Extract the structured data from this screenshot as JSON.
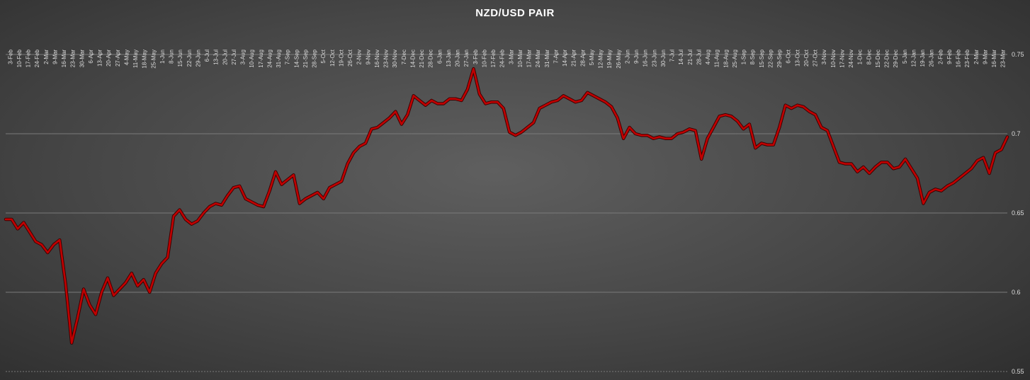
{
  "chart_data": {
    "type": "line",
    "title": "NZD/USD PAIR",
    "xlabel": "",
    "ylabel": "",
    "ylim": [
      0.55,
      0.75
    ],
    "yticks": [
      0.55,
      0.6,
      0.65,
      0.7,
      0.75
    ],
    "ytick_labels": [
      "0.55",
      "0.6",
      "0.65",
      "0.7",
      "0.75"
    ],
    "grid": "horizontal",
    "legend": "none",
    "colors": {
      "line": "#c00000",
      "background": "#4a4a4a",
      "grid": "#7a7a7a"
    },
    "x_ticks": [
      "3-Feb",
      "10-Feb",
      "17-Feb",
      "24-Feb",
      "2-Mar",
      "9-Mar",
      "16-Mar",
      "23-Mar",
      "30-Mar",
      "6-Apr",
      "13-Apr",
      "20-Apr",
      "27-Apr",
      "4-May",
      "11-May",
      "18-May",
      "25-May",
      "1-Jun",
      "8-Jun",
      "15-Jun",
      "22-Jun",
      "29-Jun",
      "6-Jul",
      "13-Jul",
      "20-Jul",
      "27-Jul",
      "3-Aug",
      "10-Aug",
      "17-Aug",
      "24-Aug",
      "31-Aug",
      "7-Sep",
      "14-Sep",
      "21-Sep",
      "28-Sep",
      "5-Oct",
      "12-Oct",
      "19-Oct",
      "26-Oct",
      "2-Nov",
      "9-Nov",
      "16-Nov",
      "23-Nov",
      "30-Nov",
      "7-Dec",
      "14-Dec",
      "21-Dec",
      "28-Dec",
      "6-Jan",
      "13-Jan",
      "20-Jan",
      "27-Jan",
      "3-Feb",
      "10-Feb",
      "17-Feb",
      "24-Feb",
      "3-Mar",
      "10-Mar",
      "17-Mar",
      "24-Mar",
      "31-Mar",
      "7-Apr",
      "14-Apr",
      "21-Apr",
      "28-Apr",
      "5-May",
      "12-May",
      "19-May",
      "26-May",
      "2-Jun",
      "9-Jun",
      "16-Jun",
      "23-Jun",
      "30-Jun",
      "7-Jul",
      "14-Jul",
      "21-Jul",
      "28-Jul",
      "4-Aug",
      "11-Aug",
      "18-Aug",
      "25-Aug",
      "1-Sep",
      "8-Sep",
      "15-Sep",
      "22-Sep",
      "29-Sep",
      "6-Oct",
      "13-Oct",
      "20-Oct",
      "27-Oct",
      "3-Nov",
      "10-Nov",
      "17-Nov",
      "24-Nov",
      "1-Dec",
      "8-Dec",
      "15-Dec",
      "22-Dec",
      "29-Dec",
      "5-Jan",
      "12-Jan",
      "19-Jan",
      "26-Jan",
      "2-Feb",
      "9-Feb",
      "16-Feb",
      "23-Feb",
      "2-Mar",
      "9-Mar",
      "16-Mar",
      "23-Mar"
    ],
    "values": [
      0.646,
      0.646,
      0.64,
      0.644,
      0.638,
      0.632,
      0.63,
      0.625,
      0.63,
      0.633,
      0.605,
      0.568,
      0.584,
      0.602,
      0.592,
      0.586,
      0.6,
      0.609,
      0.598,
      0.602,
      0.606,
      0.612,
      0.604,
      0.608,
      0.6,
      0.612,
      0.618,
      0.622,
      0.648,
      0.652,
      0.646,
      0.643,
      0.645,
      0.65,
      0.654,
      0.656,
      0.655,
      0.661,
      0.666,
      0.667,
      0.659,
      0.657,
      0.655,
      0.654,
      0.664,
      0.676,
      0.668,
      0.671,
      0.674,
      0.656,
      0.659,
      0.661,
      0.663,
      0.659,
      0.666,
      0.668,
      0.67,
      0.681,
      0.688,
      0.692,
      0.694,
      0.703,
      0.704,
      0.707,
      0.71,
      0.714,
      0.706,
      0.712,
      0.724,
      0.721,
      0.718,
      0.721,
      0.719,
      0.719,
      0.722,
      0.722,
      0.721,
      0.728,
      0.741,
      0.725,
      0.719,
      0.72,
      0.72,
      0.716,
      0.701,
      0.699,
      0.701,
      0.704,
      0.707,
      0.716,
      0.718,
      0.72,
      0.721,
      0.724,
      0.722,
      0.72,
      0.721,
      0.726,
      0.724,
      0.722,
      0.72,
      0.717,
      0.71,
      0.697,
      0.704,
      0.7,
      0.699,
      0.699,
      0.697,
      0.698,
      0.697,
      0.697,
      0.7,
      0.701,
      0.703,
      0.702,
      0.684,
      0.697,
      0.704,
      0.711,
      0.712,
      0.711,
      0.708,
      0.703,
      0.706,
      0.691,
      0.694,
      0.693,
      0.693,
      0.704,
      0.718,
      0.716,
      0.718,
      0.717,
      0.714,
      0.712,
      0.704,
      0.702,
      0.692,
      0.682,
      0.681,
      0.681,
      0.676,
      0.679,
      0.675,
      0.679,
      0.682,
      0.682,
      0.678,
      0.679,
      0.684,
      0.678,
      0.672,
      0.656,
      0.663,
      0.665,
      0.664,
      0.667,
      0.669,
      0.672,
      0.675,
      0.678,
      0.683,
      0.685,
      0.675,
      0.688,
      0.69,
      0.698
    ]
  }
}
